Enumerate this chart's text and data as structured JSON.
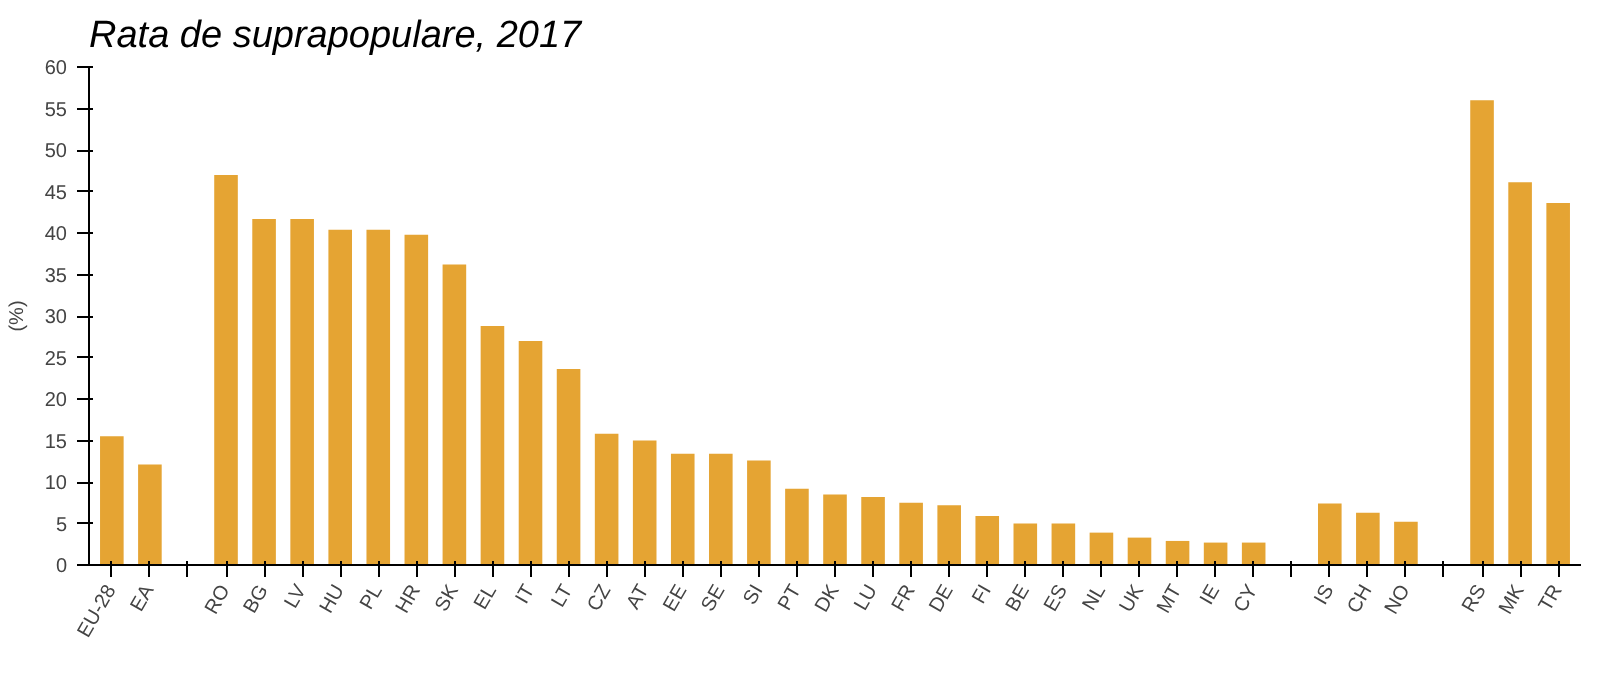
{
  "chart_data": {
    "type": "bar",
    "title": "Rata de suprapopulare, 2017",
    "ylabel": "(%)",
    "categories": [
      "EU-28",
      "EA",
      null,
      "RO",
      "BG",
      "LV",
      "HU",
      "PL",
      "HR",
      "SK",
      "EL",
      "IT",
      "LT",
      "CZ",
      "AT",
      "EE",
      "SE",
      "SI",
      "PT",
      "DK",
      "LU",
      "FR",
      "DE",
      "FI",
      "BE",
      "ES",
      "NL",
      "UK",
      "MT",
      "IE",
      "CY",
      null,
      "IS",
      "CH",
      "NO",
      null,
      "RS",
      "MK",
      "TR"
    ],
    "values": [
      15.5,
      12.1,
      null,
      47.0,
      41.7,
      41.7,
      40.4,
      40.4,
      39.8,
      36.2,
      28.8,
      27.0,
      23.6,
      15.8,
      15.0,
      13.4,
      13.4,
      12.6,
      9.2,
      8.5,
      8.2,
      7.5,
      7.2,
      5.9,
      5.0,
      5.0,
      3.9,
      3.3,
      2.9,
      2.7,
      2.7,
      null,
      7.4,
      6.3,
      5.2,
      null,
      56.0,
      46.1,
      43.6
    ],
    "color": "#e5a433",
    "ylim": [
      0,
      60
    ],
    "yticks": [
      0,
      5,
      10,
      15,
      20,
      25,
      30,
      35,
      40,
      45,
      50,
      55,
      60
    ],
    "grid": false
  }
}
